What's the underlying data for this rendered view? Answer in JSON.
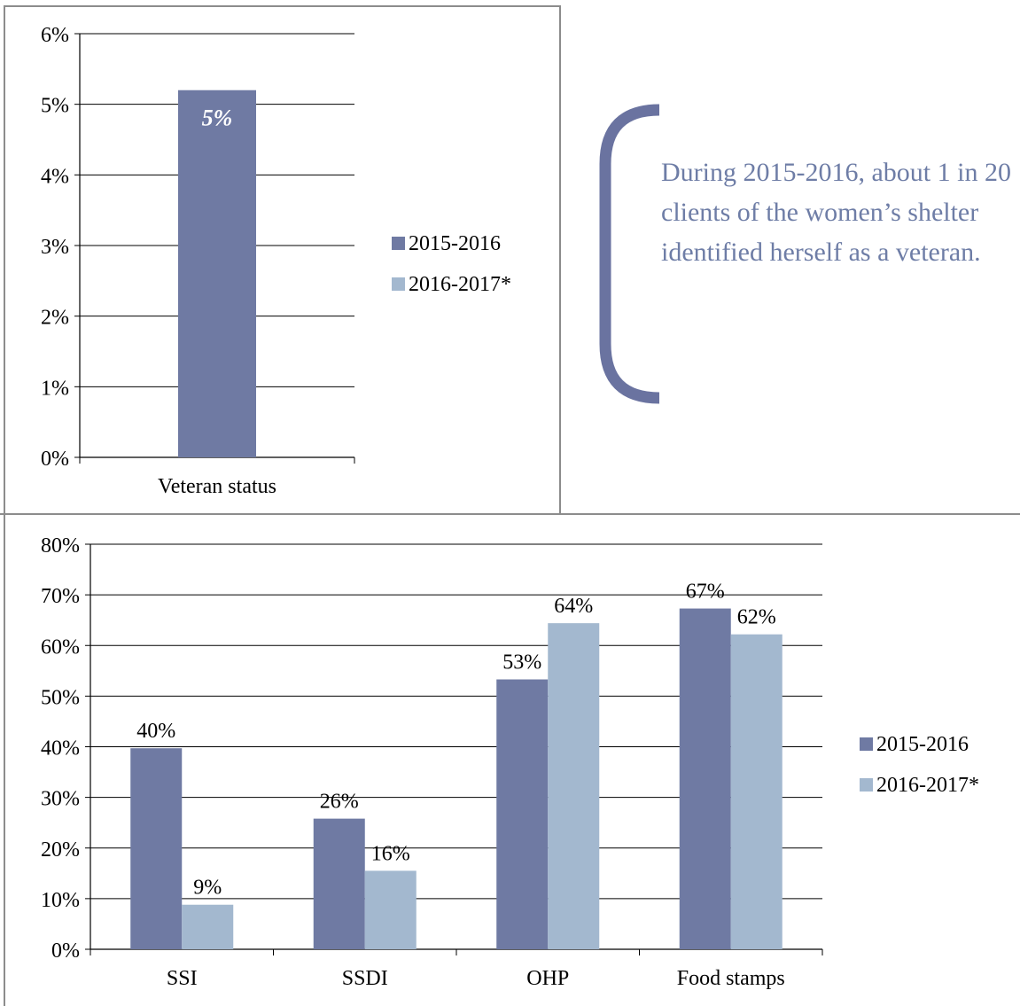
{
  "colors": {
    "series_2015": "#6f7aa3",
    "series_2016": "#a3b8cf",
    "callout": "#6e7da6",
    "bracket": "#6a73a0",
    "grid": "#000000",
    "frame": "#8c8c8c",
    "bar_label_inside": "#ffffff"
  },
  "callout": {
    "text": "During 2015-2016, about 1 in 20 clients of the women’s shelter identified herself as a veteran."
  },
  "chart_data": [
    {
      "type": "bar",
      "title": "",
      "xlabel": "",
      "ylabel": "",
      "categories": [
        "Veteran status"
      ],
      "series": [
        {
          "name": "2015-2016",
          "values": [
            5.2
          ],
          "labels": [
            "5%"
          ]
        },
        {
          "name": "2016-2017*",
          "values": [
            null
          ],
          "labels": [
            ""
          ]
        }
      ],
      "ylim": [
        0,
        6
      ],
      "yticks": [
        "0%",
        "1%",
        "2%",
        "3%",
        "4%",
        "5%",
        "6%"
      ],
      "grid": true,
      "legend_position": "right"
    },
    {
      "type": "bar",
      "title": "",
      "xlabel": "",
      "ylabel": "",
      "categories": [
        "SSI",
        "SSDI",
        "OHP",
        "Food stamps"
      ],
      "series": [
        {
          "name": "2015-2016",
          "values": [
            39.7,
            25.8,
            53.3,
            67.3
          ],
          "labels": [
            "40%",
            "26%",
            "53%",
            "67%"
          ]
        },
        {
          "name": "2016-2017*",
          "values": [
            8.8,
            15.5,
            64.4,
            62.2
          ],
          "labels": [
            "9%",
            "16%",
            "64%",
            "62%"
          ]
        }
      ],
      "ylim": [
        0,
        80
      ],
      "yticks": [
        "0%",
        "10%",
        "20%",
        "30%",
        "40%",
        "50%",
        "60%",
        "70%",
        "80%"
      ],
      "grid": true,
      "legend_position": "right"
    }
  ]
}
